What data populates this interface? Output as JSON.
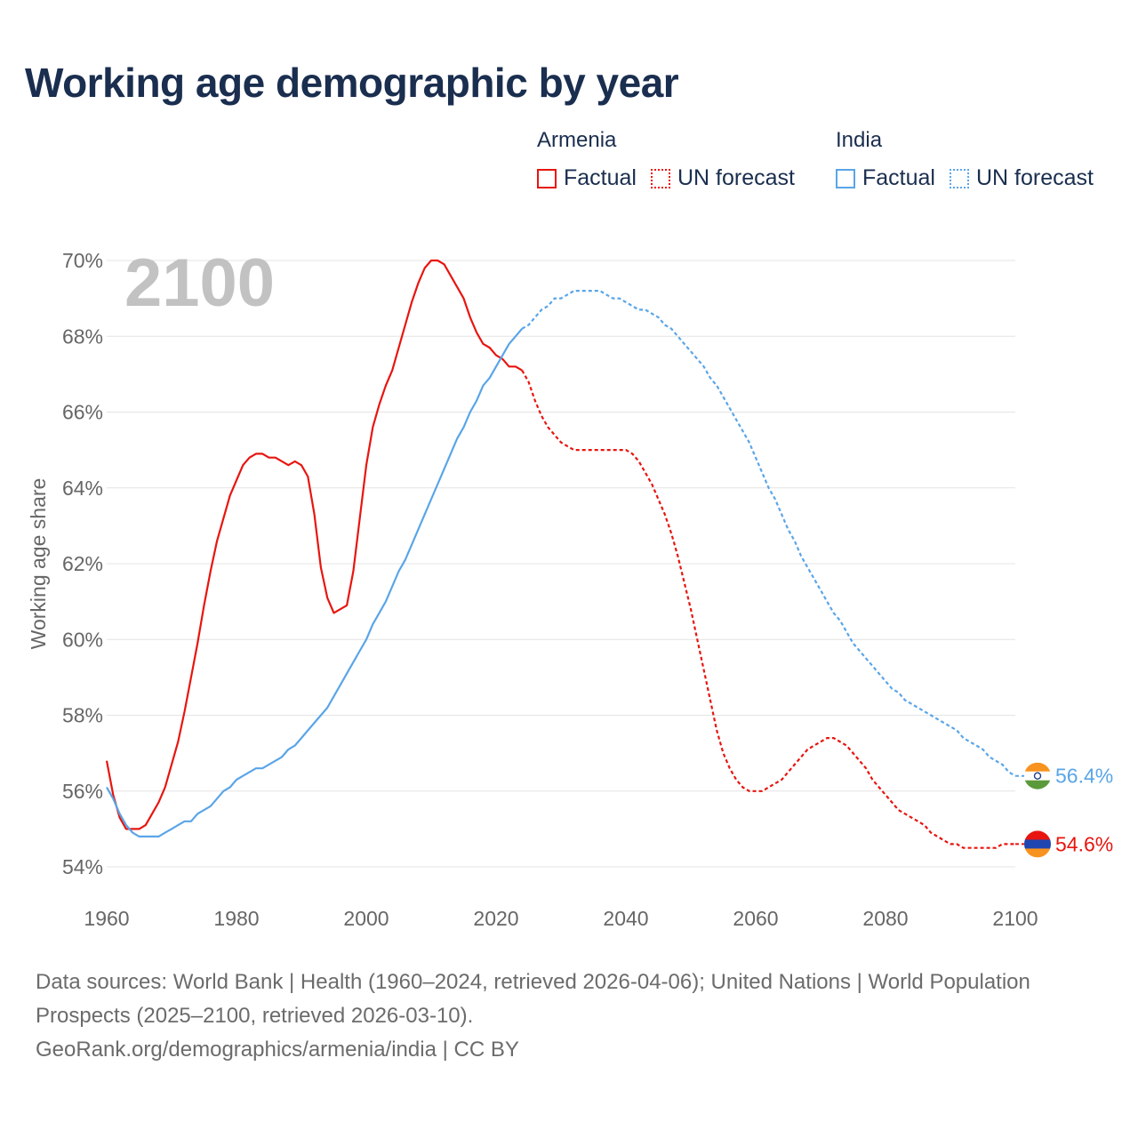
{
  "title": "Working age demographic by year",
  "legend": {
    "groups": [
      {
        "country": "Armenia",
        "factual_label": "Factual",
        "forecast_label": "UN forecast",
        "color": "#e8150f"
      },
      {
        "country": "India",
        "factual_label": "Factual",
        "forecast_label": "UN forecast",
        "color": "#5aa5e8"
      }
    ]
  },
  "year_watermark": "2100",
  "source": {
    "line1": "Data sources: World Bank | Health (1960–2024, retrieved 2026-04-06); United Nations | World Population Prospects (2025–2100, retrieved 2026-03-10).",
    "line2": "GeoRank.org/demographics/armenia/india | CC BY"
  },
  "chart_data": {
    "type": "line",
    "title": "Working age demographic by year",
    "xlabel": "",
    "ylabel": "Working age share",
    "xlim": [
      1960,
      2100
    ],
    "ylim": [
      54,
      70
    ],
    "x_ticks": [
      1960,
      1980,
      2000,
      2020,
      2040,
      2060,
      2080,
      2100
    ],
    "y_ticks": [
      54,
      56,
      58,
      60,
      62,
      64,
      66,
      68,
      70
    ],
    "y_tick_labels": [
      "54%",
      "56%",
      "58%",
      "60%",
      "62%",
      "64%",
      "66%",
      "68%",
      "70%"
    ],
    "grid": true,
    "forecast_start": 2024,
    "series": [
      {
        "name": "Armenia",
        "color": "#e8150f",
        "end_label": "54.6%",
        "flag": "armenia",
        "points": [
          [
            1960,
            56.8
          ],
          [
            1961,
            55.9
          ],
          [
            1962,
            55.3
          ],
          [
            1963,
            55.0
          ],
          [
            1964,
            55.0
          ],
          [
            1965,
            55.0
          ],
          [
            1966,
            55.1
          ],
          [
            1967,
            55.4
          ],
          [
            1968,
            55.7
          ],
          [
            1969,
            56.1
          ],
          [
            1970,
            56.7
          ],
          [
            1971,
            57.3
          ],
          [
            1972,
            58.1
          ],
          [
            1973,
            59.0
          ],
          [
            1974,
            59.9
          ],
          [
            1975,
            60.9
          ],
          [
            1976,
            61.8
          ],
          [
            1977,
            62.6
          ],
          [
            1978,
            63.2
          ],
          [
            1979,
            63.8
          ],
          [
            1980,
            64.2
          ],
          [
            1981,
            64.6
          ],
          [
            1982,
            64.8
          ],
          [
            1983,
            64.9
          ],
          [
            1984,
            64.9
          ],
          [
            1985,
            64.8
          ],
          [
            1986,
            64.8
          ],
          [
            1987,
            64.7
          ],
          [
            1988,
            64.6
          ],
          [
            1989,
            64.7
          ],
          [
            1990,
            64.6
          ],
          [
            1991,
            64.3
          ],
          [
            1992,
            63.3
          ],
          [
            1993,
            61.9
          ],
          [
            1994,
            61.1
          ],
          [
            1995,
            60.7
          ],
          [
            1996,
            60.8
          ],
          [
            1997,
            60.9
          ],
          [
            1998,
            61.8
          ],
          [
            1999,
            63.2
          ],
          [
            2000,
            64.6
          ],
          [
            2001,
            65.6
          ],
          [
            2002,
            66.2
          ],
          [
            2003,
            66.7
          ],
          [
            2004,
            67.1
          ],
          [
            2005,
            67.7
          ],
          [
            2006,
            68.3
          ],
          [
            2007,
            68.9
          ],
          [
            2008,
            69.4
          ],
          [
            2009,
            69.8
          ],
          [
            2010,
            70.0
          ],
          [
            2011,
            70.0
          ],
          [
            2012,
            69.9
          ],
          [
            2013,
            69.6
          ],
          [
            2014,
            69.3
          ],
          [
            2015,
            69.0
          ],
          [
            2016,
            68.5
          ],
          [
            2017,
            68.1
          ],
          [
            2018,
            67.8
          ],
          [
            2019,
            67.7
          ],
          [
            2020,
            67.5
          ],
          [
            2021,
            67.4
          ],
          [
            2022,
            67.2
          ],
          [
            2023,
            67.2
          ],
          [
            2024,
            67.1
          ],
          [
            2025,
            66.8
          ],
          [
            2026,
            66.3
          ],
          [
            2027,
            65.9
          ],
          [
            2028,
            65.6
          ],
          [
            2029,
            65.4
          ],
          [
            2030,
            65.2
          ],
          [
            2031,
            65.1
          ],
          [
            2032,
            65.0
          ],
          [
            2033,
            65.0
          ],
          [
            2034,
            65.0
          ],
          [
            2035,
            65.0
          ],
          [
            2036,
            65.0
          ],
          [
            2037,
            65.0
          ],
          [
            2038,
            65.0
          ],
          [
            2039,
            65.0
          ],
          [
            2040,
            65.0
          ],
          [
            2041,
            64.9
          ],
          [
            2042,
            64.7
          ],
          [
            2043,
            64.4
          ],
          [
            2044,
            64.1
          ],
          [
            2045,
            63.7
          ],
          [
            2046,
            63.3
          ],
          [
            2047,
            62.8
          ],
          [
            2048,
            62.2
          ],
          [
            2049,
            61.5
          ],
          [
            2050,
            60.8
          ],
          [
            2051,
            60.0
          ],
          [
            2052,
            59.2
          ],
          [
            2053,
            58.4
          ],
          [
            2054,
            57.6
          ],
          [
            2055,
            57.0
          ],
          [
            2056,
            56.6
          ],
          [
            2057,
            56.3
          ],
          [
            2058,
            56.1
          ],
          [
            2059,
            56.0
          ],
          [
            2060,
            56.0
          ],
          [
            2061,
            56.0
          ],
          [
            2062,
            56.1
          ],
          [
            2063,
            56.2
          ],
          [
            2064,
            56.3
          ],
          [
            2065,
            56.5
          ],
          [
            2066,
            56.7
          ],
          [
            2067,
            56.9
          ],
          [
            2068,
            57.1
          ],
          [
            2069,
            57.2
          ],
          [
            2070,
            57.3
          ],
          [
            2071,
            57.4
          ],
          [
            2072,
            57.4
          ],
          [
            2073,
            57.3
          ],
          [
            2074,
            57.2
          ],
          [
            2075,
            57.0
          ],
          [
            2076,
            56.8
          ],
          [
            2077,
            56.6
          ],
          [
            2078,
            56.3
          ],
          [
            2079,
            56.1
          ],
          [
            2080,
            55.9
          ],
          [
            2081,
            55.7
          ],
          [
            2082,
            55.5
          ],
          [
            2083,
            55.4
          ],
          [
            2084,
            55.3
          ],
          [
            2085,
            55.2
          ],
          [
            2086,
            55.1
          ],
          [
            2087,
            54.9
          ],
          [
            2088,
            54.8
          ],
          [
            2089,
            54.7
          ],
          [
            2090,
            54.6
          ],
          [
            2091,
            54.6
          ],
          [
            2092,
            54.5
          ],
          [
            2093,
            54.5
          ],
          [
            2094,
            54.5
          ],
          [
            2095,
            54.5
          ],
          [
            2096,
            54.5
          ],
          [
            2097,
            54.5
          ],
          [
            2098,
            54.6
          ],
          [
            2099,
            54.6
          ],
          [
            2100,
            54.6
          ]
        ]
      },
      {
        "name": "India",
        "color": "#5aa5e8",
        "end_label": "56.4%",
        "flag": "india",
        "points": [
          [
            1960,
            56.1
          ],
          [
            1961,
            55.8
          ],
          [
            1962,
            55.4
          ],
          [
            1963,
            55.1
          ],
          [
            1964,
            54.9
          ],
          [
            1965,
            54.8
          ],
          [
            1966,
            54.8
          ],
          [
            1967,
            54.8
          ],
          [
            1968,
            54.8
          ],
          [
            1969,
            54.9
          ],
          [
            1970,
            55.0
          ],
          [
            1971,
            55.1
          ],
          [
            1972,
            55.2
          ],
          [
            1973,
            55.2
          ],
          [
            1974,
            55.4
          ],
          [
            1975,
            55.5
          ],
          [
            1976,
            55.6
          ],
          [
            1977,
            55.8
          ],
          [
            1978,
            56.0
          ],
          [
            1979,
            56.1
          ],
          [
            1980,
            56.3
          ],
          [
            1981,
            56.4
          ],
          [
            1982,
            56.5
          ],
          [
            1983,
            56.6
          ],
          [
            1984,
            56.6
          ],
          [
            1985,
            56.7
          ],
          [
            1986,
            56.8
          ],
          [
            1987,
            56.9
          ],
          [
            1988,
            57.1
          ],
          [
            1989,
            57.2
          ],
          [
            1990,
            57.4
          ],
          [
            1991,
            57.6
          ],
          [
            1992,
            57.8
          ],
          [
            1993,
            58.0
          ],
          [
            1994,
            58.2
          ],
          [
            1995,
            58.5
          ],
          [
            1996,
            58.8
          ],
          [
            1997,
            59.1
          ],
          [
            1998,
            59.4
          ],
          [
            1999,
            59.7
          ],
          [
            2000,
            60.0
          ],
          [
            2001,
            60.4
          ],
          [
            2002,
            60.7
          ],
          [
            2003,
            61.0
          ],
          [
            2004,
            61.4
          ],
          [
            2005,
            61.8
          ],
          [
            2006,
            62.1
          ],
          [
            2007,
            62.5
          ],
          [
            2008,
            62.9
          ],
          [
            2009,
            63.3
          ],
          [
            2010,
            63.7
          ],
          [
            2011,
            64.1
          ],
          [
            2012,
            64.5
          ],
          [
            2013,
            64.9
          ],
          [
            2014,
            65.3
          ],
          [
            2015,
            65.6
          ],
          [
            2016,
            66.0
          ],
          [
            2017,
            66.3
          ],
          [
            2018,
            66.7
          ],
          [
            2019,
            66.9
          ],
          [
            2020,
            67.2
          ],
          [
            2021,
            67.5
          ],
          [
            2022,
            67.8
          ],
          [
            2023,
            68.0
          ],
          [
            2024,
            68.2
          ],
          [
            2025,
            68.3
          ],
          [
            2026,
            68.5
          ],
          [
            2027,
            68.7
          ],
          [
            2028,
            68.8
          ],
          [
            2029,
            69.0
          ],
          [
            2030,
            69.0
          ],
          [
            2031,
            69.1
          ],
          [
            2032,
            69.2
          ],
          [
            2033,
            69.2
          ],
          [
            2034,
            69.2
          ],
          [
            2035,
            69.2
          ],
          [
            2036,
            69.2
          ],
          [
            2037,
            69.1
          ],
          [
            2038,
            69.0
          ],
          [
            2039,
            69.0
          ],
          [
            2040,
            68.9
          ],
          [
            2041,
            68.8
          ],
          [
            2042,
            68.7
          ],
          [
            2043,
            68.7
          ],
          [
            2044,
            68.6
          ],
          [
            2045,
            68.5
          ],
          [
            2046,
            68.3
          ],
          [
            2047,
            68.2
          ],
          [
            2048,
            68.0
          ],
          [
            2049,
            67.8
          ],
          [
            2050,
            67.6
          ],
          [
            2051,
            67.4
          ],
          [
            2052,
            67.2
          ],
          [
            2053,
            66.9
          ],
          [
            2054,
            66.7
          ],
          [
            2055,
            66.4
          ],
          [
            2056,
            66.1
          ],
          [
            2057,
            65.8
          ],
          [
            2058,
            65.5
          ],
          [
            2059,
            65.2
          ],
          [
            2060,
            64.8
          ],
          [
            2061,
            64.4
          ],
          [
            2062,
            64.0
          ],
          [
            2063,
            63.7
          ],
          [
            2064,
            63.3
          ],
          [
            2065,
            62.9
          ],
          [
            2066,
            62.6
          ],
          [
            2067,
            62.2
          ],
          [
            2068,
            61.9
          ],
          [
            2069,
            61.6
          ],
          [
            2070,
            61.3
          ],
          [
            2071,
            61.0
          ],
          [
            2072,
            60.7
          ],
          [
            2073,
            60.5
          ],
          [
            2074,
            60.2
          ],
          [
            2075,
            59.9
          ],
          [
            2076,
            59.7
          ],
          [
            2077,
            59.5
          ],
          [
            2078,
            59.3
          ],
          [
            2079,
            59.1
          ],
          [
            2080,
            58.9
          ],
          [
            2081,
            58.7
          ],
          [
            2082,
            58.6
          ],
          [
            2083,
            58.4
          ],
          [
            2084,
            58.3
          ],
          [
            2085,
            58.2
          ],
          [
            2086,
            58.1
          ],
          [
            2087,
            58.0
          ],
          [
            2088,
            57.9
          ],
          [
            2089,
            57.8
          ],
          [
            2090,
            57.7
          ],
          [
            2091,
            57.6
          ],
          [
            2092,
            57.4
          ],
          [
            2093,
            57.3
          ],
          [
            2094,
            57.2
          ],
          [
            2095,
            57.1
          ],
          [
            2096,
            56.9
          ],
          [
            2097,
            56.8
          ],
          [
            2098,
            56.7
          ],
          [
            2099,
            56.5
          ],
          [
            2100,
            56.4
          ]
        ]
      }
    ]
  }
}
